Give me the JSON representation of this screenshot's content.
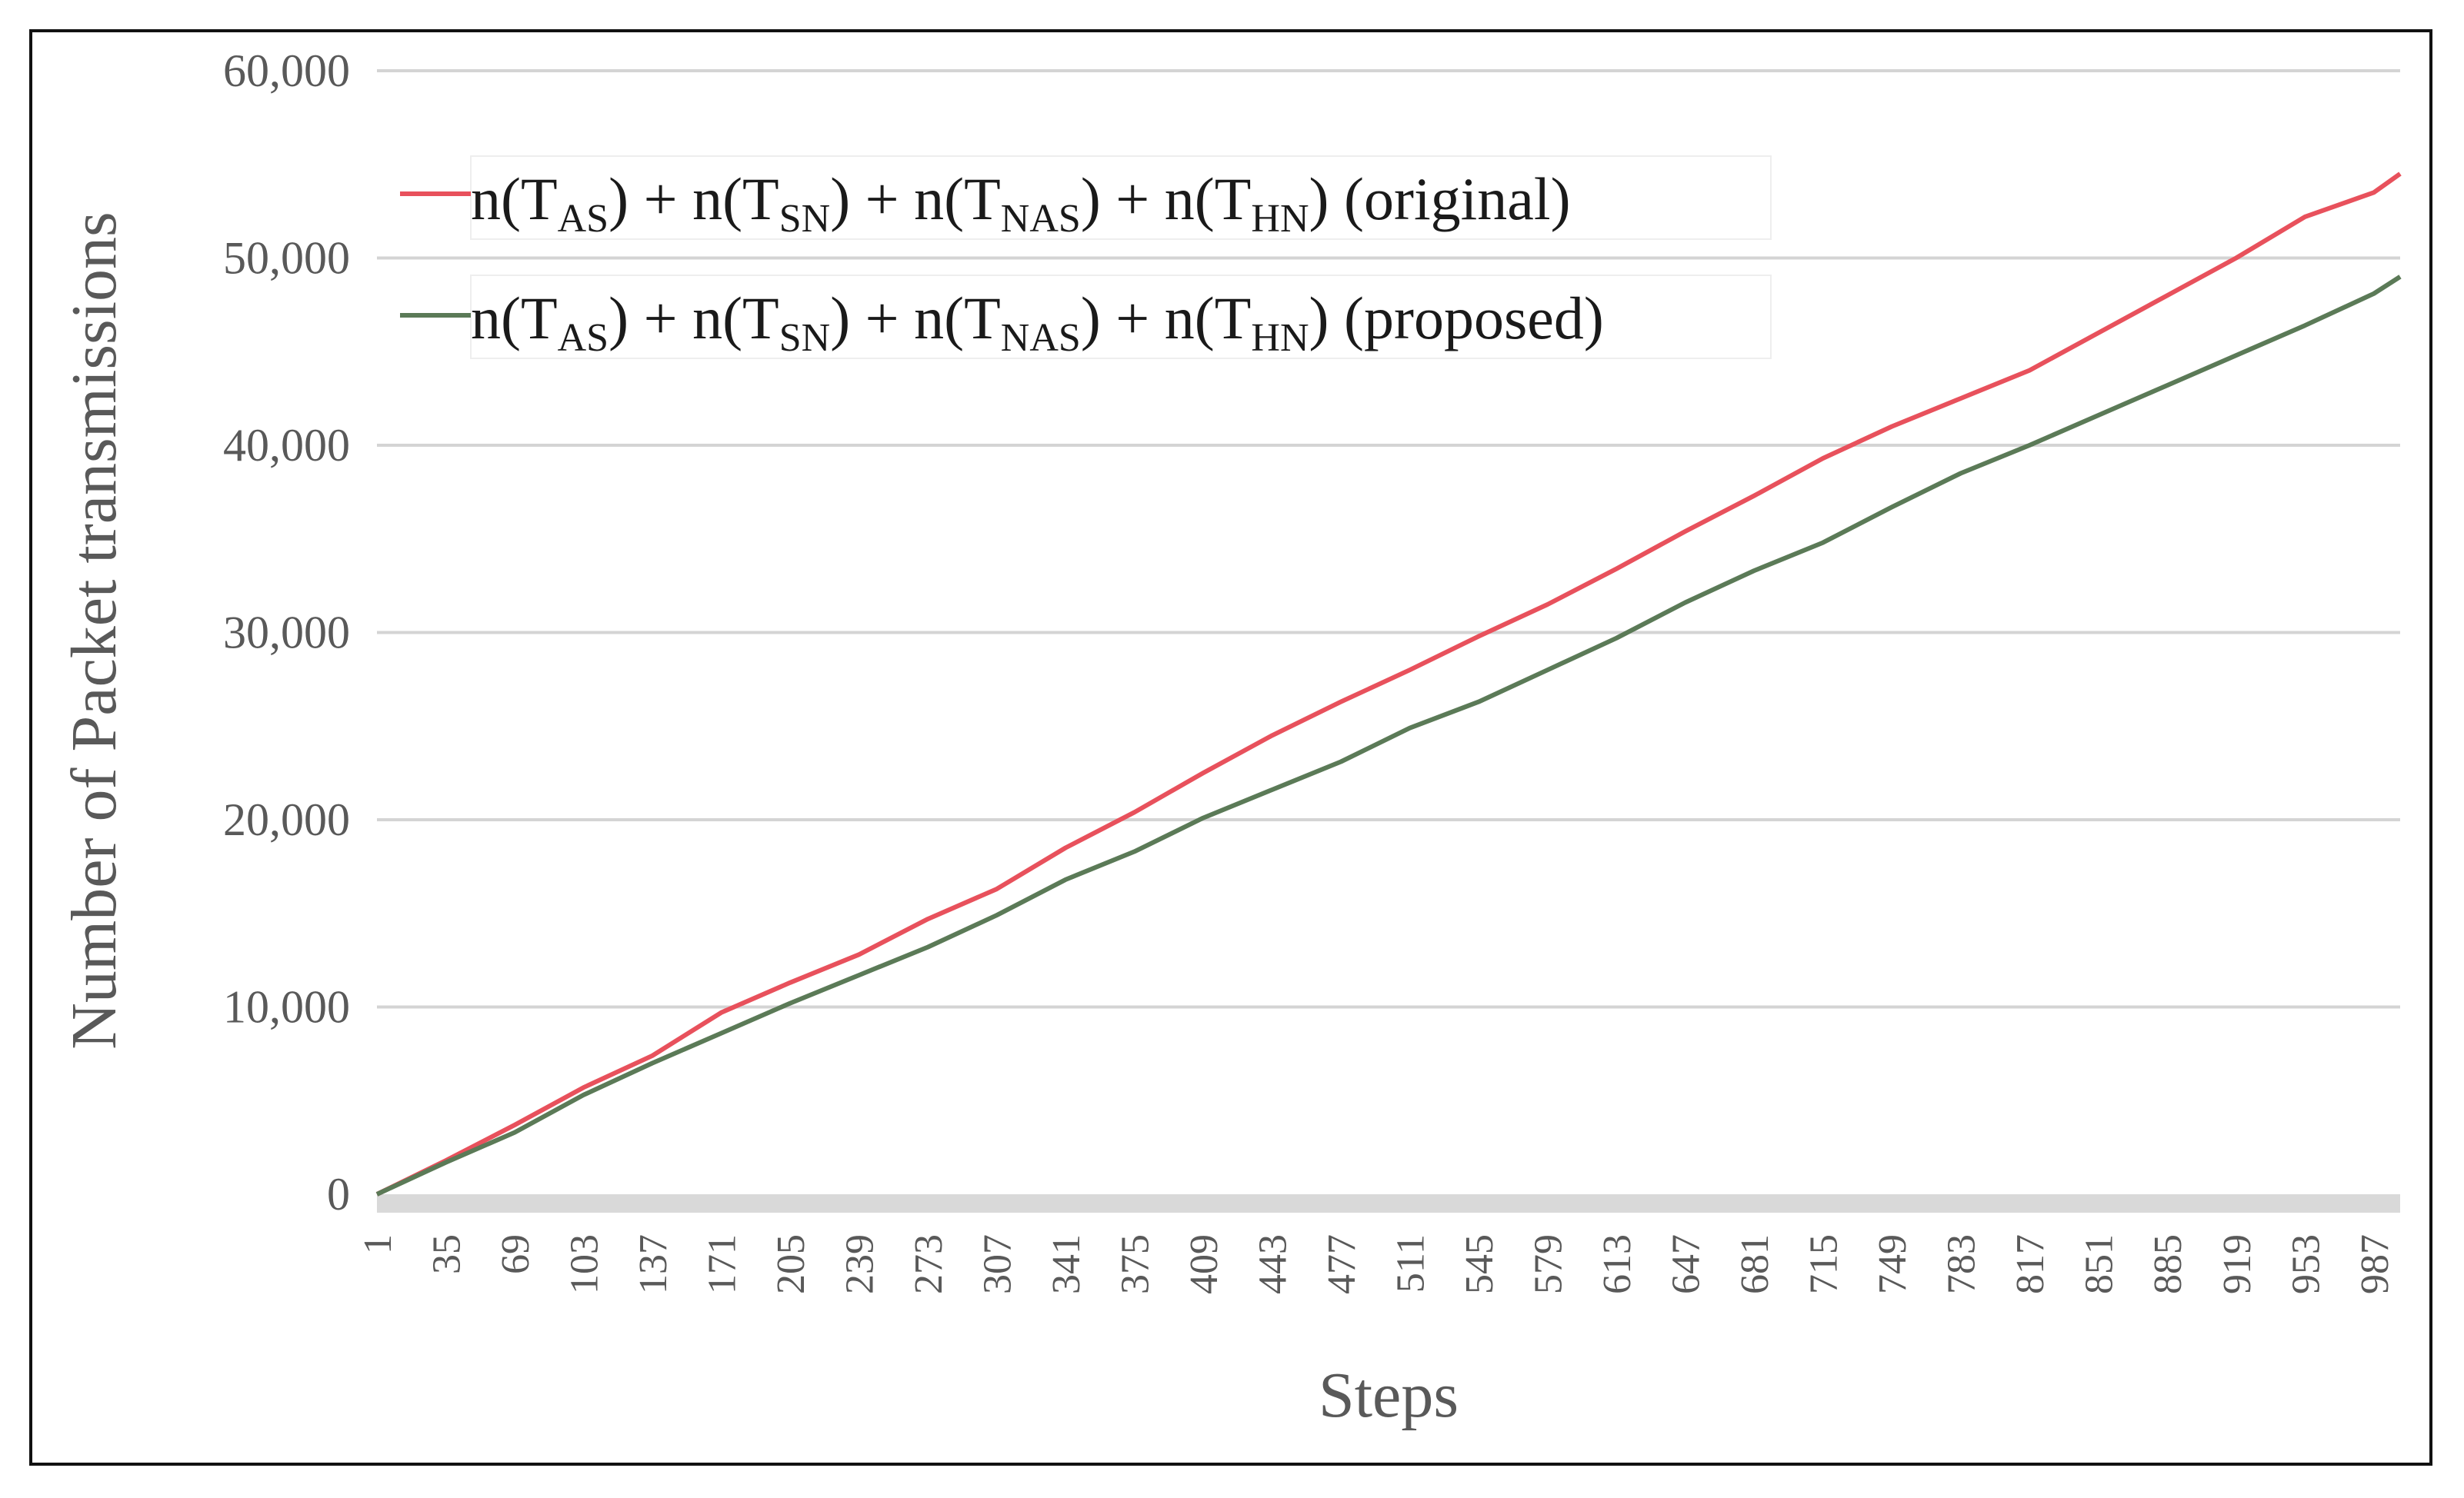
{
  "chart_data": {
    "type": "line",
    "title": "",
    "xlabel": "Steps",
    "ylabel": "Number of Packet transmissions",
    "ylim": [
      0,
      60000
    ],
    "yticks": [
      "0",
      "10,000",
      "20,000",
      "30,000",
      "40,000",
      "50,000",
      "60,000"
    ],
    "ytick_values": [
      0,
      10000,
      20000,
      30000,
      40000,
      50000,
      60000
    ],
    "xlim": [
      1,
      1000
    ],
    "xticks": [
      "1",
      "35",
      "69",
      "103",
      "137",
      "171",
      "205",
      "239",
      "273",
      "307",
      "341",
      "375",
      "409",
      "443",
      "477",
      "511",
      "545",
      "579",
      "613",
      "647",
      "681",
      "715",
      "749",
      "783",
      "817",
      "851",
      "885",
      "919",
      "953",
      "987"
    ],
    "xtick_values": [
      1,
      35,
      69,
      103,
      137,
      171,
      205,
      239,
      273,
      307,
      341,
      375,
      409,
      443,
      477,
      511,
      545,
      579,
      613,
      647,
      681,
      715,
      749,
      783,
      817,
      851,
      885,
      919,
      953,
      987
    ],
    "grid": true,
    "legend_position": "top-left",
    "x": [
      1,
      35,
      69,
      103,
      137,
      171,
      205,
      239,
      273,
      307,
      341,
      375,
      409,
      443,
      477,
      511,
      545,
      579,
      613,
      647,
      681,
      715,
      749,
      783,
      817,
      851,
      885,
      919,
      953,
      987,
      1000
    ],
    "series": [
      {
        "name": "original",
        "legend_parts": [
          {
            "t": "n(T"
          },
          {
            "s": "AS"
          },
          {
            "t": ") + n(T"
          },
          {
            "s": "SN"
          },
          {
            "t": ") + n(T"
          },
          {
            "s": "NAS"
          },
          {
            "t": ") + n(T"
          },
          {
            "s": "HN"
          },
          {
            "t": ")  (original)"
          }
        ],
        "color": "#e8515c",
        "values": [
          0,
          1800,
          3700,
          5700,
          7400,
          9700,
          11300,
          12800,
          14700,
          16300,
          18500,
          20400,
          22500,
          24500,
          26300,
          28000,
          29800,
          31500,
          33400,
          35400,
          37300,
          39300,
          41000,
          42500,
          44000,
          46000,
          48000,
          50000,
          52200,
          53500,
          54500
        ]
      },
      {
        "name": "proposed",
        "legend_parts": [
          {
            "t": "n(T"
          },
          {
            "s": "AS"
          },
          {
            "t": ") + n(T"
          },
          {
            "s": "SN"
          },
          {
            "t": ") + n(T"
          },
          {
            "s": "NAS"
          },
          {
            "t": ") + n(T"
          },
          {
            "s": "HN"
          },
          {
            "t": ")  (proposed)"
          }
        ],
        "color": "#5b7a57",
        "values": [
          0,
          1700,
          3300,
          5300,
          7000,
          8600,
          10200,
          11700,
          13200,
          14900,
          16800,
          18300,
          20100,
          21600,
          23100,
          24900,
          26300,
          28000,
          29700,
          31600,
          33300,
          34800,
          36700,
          38500,
          40000,
          41600,
          43200,
          44800,
          46400,
          48100,
          49000
        ]
      }
    ]
  }
}
